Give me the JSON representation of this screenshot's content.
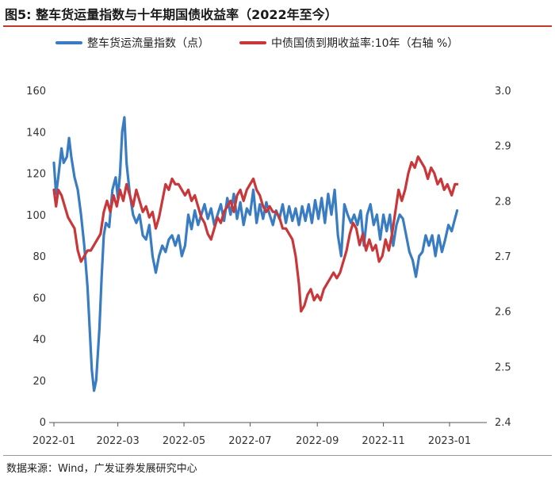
{
  "title": "图5:  整车货运量指数与十年期国债收益率（2022年至今）",
  "source": "数据来源：Wind，广发证券发展研究中心",
  "chart_data": {
    "type": "line",
    "title": "整车货运量指数与十年期国债收益率（2022年至今）",
    "x_tick_labels": [
      "2022-01",
      "2022-03",
      "2022-05",
      "2022-07",
      "2022-09",
      "2022-11",
      "2023-01"
    ],
    "x_tick_dates": [
      "2022-01-01",
      "2022-03-01",
      "2022-05-01",
      "2022-07-01",
      "2022-09-01",
      "2022-11-01",
      "2023-01-01"
    ],
    "ylim_left": [
      0,
      160
    ],
    "y_ticks_left": [
      0,
      20,
      40,
      60,
      80,
      100,
      120,
      140,
      160
    ],
    "ylim_right": [
      2.4,
      3.0
    ],
    "y_ticks_right": [
      "2.4",
      "2.5",
      "2.6",
      "2.7",
      "2.8",
      "2.9",
      "3.0"
    ],
    "xlim": [
      "2022-01-01",
      "2023-01-31"
    ],
    "series": [
      {
        "name": "整车货运流量指数（点）",
        "axis": "left",
        "color": "#3a7cc2",
        "points": [
          [
            "2022-01-01",
            125
          ],
          [
            "2022-01-03",
            110
          ],
          [
            "2022-01-05",
            118
          ],
          [
            "2022-01-08",
            132
          ],
          [
            "2022-01-10",
            125
          ],
          [
            "2022-01-13",
            128
          ],
          [
            "2022-01-15",
            137
          ],
          [
            "2022-01-17",
            128
          ],
          [
            "2022-01-20",
            118
          ],
          [
            "2022-01-23",
            112
          ],
          [
            "2022-01-26",
            100
          ],
          [
            "2022-01-29",
            85
          ],
          [
            "2022-02-01",
            65
          ],
          [
            "2022-02-03",
            45
          ],
          [
            "2022-02-05",
            25
          ],
          [
            "2022-02-07",
            15
          ],
          [
            "2022-02-09",
            20
          ],
          [
            "2022-02-12",
            45
          ],
          [
            "2022-02-14",
            70
          ],
          [
            "2022-02-16",
            90
          ],
          [
            "2022-02-18",
            96
          ],
          [
            "2022-02-21",
            94
          ],
          [
            "2022-02-24",
            112
          ],
          [
            "2022-02-27",
            118
          ],
          [
            "2022-03-01",
            108
          ],
          [
            "2022-03-03",
            120
          ],
          [
            "2022-03-05",
            140
          ],
          [
            "2022-03-07",
            147
          ],
          [
            "2022-03-09",
            125
          ],
          [
            "2022-03-12",
            110
          ],
          [
            "2022-03-15",
            100
          ],
          [
            "2022-03-18",
            96
          ],
          [
            "2022-03-21",
            100
          ],
          [
            "2022-03-24",
            90
          ],
          [
            "2022-03-27",
            88
          ],
          [
            "2022-03-30",
            95
          ],
          [
            "2022-04-02",
            80
          ],
          [
            "2022-04-05",
            72
          ],
          [
            "2022-04-08",
            80
          ],
          [
            "2022-04-11",
            85
          ],
          [
            "2022-04-14",
            82
          ],
          [
            "2022-04-17",
            88
          ],
          [
            "2022-04-20",
            90
          ],
          [
            "2022-04-23",
            85
          ],
          [
            "2022-04-26",
            90
          ],
          [
            "2022-04-29",
            80
          ],
          [
            "2022-05-02",
            85
          ],
          [
            "2022-05-05",
            100
          ],
          [
            "2022-05-08",
            93
          ],
          [
            "2022-05-11",
            102
          ],
          [
            "2022-05-14",
            95
          ],
          [
            "2022-05-17",
            100
          ],
          [
            "2022-05-20",
            105
          ],
          [
            "2022-05-23",
            98
          ],
          [
            "2022-05-26",
            103
          ],
          [
            "2022-05-29",
            95
          ],
          [
            "2022-06-01",
            100
          ],
          [
            "2022-06-04",
            105
          ],
          [
            "2022-06-07",
            97
          ],
          [
            "2022-06-10",
            108
          ],
          [
            "2022-06-13",
            100
          ],
          [
            "2022-06-16",
            110
          ],
          [
            "2022-06-19",
            98
          ],
          [
            "2022-06-22",
            106
          ],
          [
            "2022-06-25",
            95
          ],
          [
            "2022-06-28",
            103
          ],
          [
            "2022-07-01",
            100
          ],
          [
            "2022-07-04",
            112
          ],
          [
            "2022-07-07",
            96
          ],
          [
            "2022-07-10",
            105
          ],
          [
            "2022-07-13",
            98
          ],
          [
            "2022-07-16",
            106
          ],
          [
            "2022-07-19",
            100
          ],
          [
            "2022-07-22",
            95
          ],
          [
            "2022-07-25",
            102
          ],
          [
            "2022-07-28",
            98
          ],
          [
            "2022-07-31",
            105
          ],
          [
            "2022-08-03",
            96
          ],
          [
            "2022-08-06",
            104
          ],
          [
            "2022-08-09",
            97
          ],
          [
            "2022-08-12",
            103
          ],
          [
            "2022-08-15",
            95
          ],
          [
            "2022-08-18",
            104
          ],
          [
            "2022-08-21",
            97
          ],
          [
            "2022-08-24",
            105
          ],
          [
            "2022-08-27",
            96
          ],
          [
            "2022-08-30",
            107
          ],
          [
            "2022-09-02",
            98
          ],
          [
            "2022-09-05",
            108
          ],
          [
            "2022-09-08",
            96
          ],
          [
            "2022-09-11",
            110
          ],
          [
            "2022-09-14",
            100
          ],
          [
            "2022-09-17",
            112
          ],
          [
            "2022-09-20",
            90
          ],
          [
            "2022-09-23",
            80
          ],
          [
            "2022-09-26",
            105
          ],
          [
            "2022-09-29",
            100
          ],
          [
            "2022-10-02",
            96
          ],
          [
            "2022-10-05",
            100
          ],
          [
            "2022-10-08",
            95
          ],
          [
            "2022-10-11",
            102
          ],
          [
            "2022-10-14",
            85
          ],
          [
            "2022-10-17",
            100
          ],
          [
            "2022-10-20",
            105
          ],
          [
            "2022-10-23",
            95
          ],
          [
            "2022-10-26",
            100
          ],
          [
            "2022-10-29",
            88
          ],
          [
            "2022-11-01",
            100
          ],
          [
            "2022-11-04",
            92
          ],
          [
            "2022-11-07",
            100
          ],
          [
            "2022-11-10",
            85
          ],
          [
            "2022-11-13",
            95
          ],
          [
            "2022-11-16",
            100
          ],
          [
            "2022-11-19",
            98
          ],
          [
            "2022-11-22",
            90
          ],
          [
            "2022-11-25",
            82
          ],
          [
            "2022-11-28",
            78
          ],
          [
            "2022-12-01",
            70
          ],
          [
            "2022-12-04",
            80
          ],
          [
            "2022-12-07",
            82
          ],
          [
            "2022-12-10",
            90
          ],
          [
            "2022-12-13",
            85
          ],
          [
            "2022-12-16",
            90
          ],
          [
            "2022-12-19",
            80
          ],
          [
            "2022-12-22",
            90
          ],
          [
            "2022-12-25",
            82
          ],
          [
            "2022-12-28",
            88
          ],
          [
            "2022-12-31",
            95
          ],
          [
            "2023-01-03",
            92
          ],
          [
            "2023-01-06",
            98
          ],
          [
            "2023-01-08",
            102
          ]
        ]
      },
      {
        "name": "中债国债到期收益率:10年（右轴 %）",
        "axis": "right",
        "color": "#c8373a",
        "points": [
          [
            "2022-01-01",
            2.82
          ],
          [
            "2022-01-03",
            2.79
          ],
          [
            "2022-01-05",
            2.82
          ],
          [
            "2022-01-08",
            2.81
          ],
          [
            "2022-01-11",
            2.79
          ],
          [
            "2022-01-14",
            2.77
          ],
          [
            "2022-01-17",
            2.76
          ],
          [
            "2022-01-20",
            2.75
          ],
          [
            "2022-01-23",
            2.71
          ],
          [
            "2022-01-26",
            2.69
          ],
          [
            "2022-01-29",
            2.7
          ],
          [
            "2022-02-01",
            2.71
          ],
          [
            "2022-02-04",
            2.71
          ],
          [
            "2022-02-07",
            2.72
          ],
          [
            "2022-02-10",
            2.73
          ],
          [
            "2022-02-13",
            2.74
          ],
          [
            "2022-02-16",
            2.78
          ],
          [
            "2022-02-19",
            2.8
          ],
          [
            "2022-02-22",
            2.78
          ],
          [
            "2022-02-25",
            2.81
          ],
          [
            "2022-02-28",
            2.79
          ],
          [
            "2022-03-03",
            2.82
          ],
          [
            "2022-03-06",
            2.8
          ],
          [
            "2022-03-09",
            2.83
          ],
          [
            "2022-03-12",
            2.81
          ],
          [
            "2022-03-15",
            2.79
          ],
          [
            "2022-03-18",
            2.82
          ],
          [
            "2022-03-21",
            2.8
          ],
          [
            "2022-03-24",
            2.78
          ],
          [
            "2022-03-27",
            2.79
          ],
          [
            "2022-03-30",
            2.77
          ],
          [
            "2022-04-02",
            2.78
          ],
          [
            "2022-04-05",
            2.75
          ],
          [
            "2022-04-08",
            2.77
          ],
          [
            "2022-04-11",
            2.8
          ],
          [
            "2022-04-14",
            2.83
          ],
          [
            "2022-04-17",
            2.82
          ],
          [
            "2022-04-20",
            2.84
          ],
          [
            "2022-04-23",
            2.83
          ],
          [
            "2022-04-26",
            2.83
          ],
          [
            "2022-04-29",
            2.82
          ],
          [
            "2022-05-02",
            2.81
          ],
          [
            "2022-05-05",
            2.82
          ],
          [
            "2022-05-08",
            2.8
          ],
          [
            "2022-05-11",
            2.81
          ],
          [
            "2022-05-14",
            2.79
          ],
          [
            "2022-05-17",
            2.77
          ],
          [
            "2022-05-20",
            2.76
          ],
          [
            "2022-05-23",
            2.74
          ],
          [
            "2022-05-26",
            2.73
          ],
          [
            "2022-05-29",
            2.75
          ],
          [
            "2022-06-01",
            2.77
          ],
          [
            "2022-06-04",
            2.76
          ],
          [
            "2022-06-07",
            2.78
          ],
          [
            "2022-06-10",
            2.79
          ],
          [
            "2022-06-13",
            2.8
          ],
          [
            "2022-06-16",
            2.78
          ],
          [
            "2022-06-19",
            2.81
          ],
          [
            "2022-06-22",
            2.82
          ],
          [
            "2022-06-25",
            2.8
          ],
          [
            "2022-06-28",
            2.82
          ],
          [
            "2022-07-01",
            2.83
          ],
          [
            "2022-07-04",
            2.84
          ],
          [
            "2022-07-07",
            2.82
          ],
          [
            "2022-07-10",
            2.81
          ],
          [
            "2022-07-13",
            2.79
          ],
          [
            "2022-07-16",
            2.78
          ],
          [
            "2022-07-19",
            2.79
          ],
          [
            "2022-07-22",
            2.78
          ],
          [
            "2022-07-25",
            2.78
          ],
          [
            "2022-07-28",
            2.77
          ],
          [
            "2022-07-31",
            2.75
          ],
          [
            "2022-08-03",
            2.75
          ],
          [
            "2022-08-06",
            2.74
          ],
          [
            "2022-08-09",
            2.73
          ],
          [
            "2022-08-12",
            2.7
          ],
          [
            "2022-08-15",
            2.65
          ],
          [
            "2022-08-17",
            2.6
          ],
          [
            "2022-08-20",
            2.61
          ],
          [
            "2022-08-23",
            2.63
          ],
          [
            "2022-08-26",
            2.64
          ],
          [
            "2022-08-29",
            2.62
          ],
          [
            "2022-09-01",
            2.63
          ],
          [
            "2022-09-04",
            2.62
          ],
          [
            "2022-09-07",
            2.64
          ],
          [
            "2022-09-10",
            2.65
          ],
          [
            "2022-09-13",
            2.66
          ],
          [
            "2022-09-16",
            2.67
          ],
          [
            "2022-09-19",
            2.66
          ],
          [
            "2022-09-22",
            2.67
          ],
          [
            "2022-09-25",
            2.69
          ],
          [
            "2022-09-28",
            2.71
          ],
          [
            "2022-10-01",
            2.74
          ],
          [
            "2022-10-04",
            2.76
          ],
          [
            "2022-10-07",
            2.75
          ],
          [
            "2022-10-10",
            2.72
          ],
          [
            "2022-10-13",
            2.74
          ],
          [
            "2022-10-16",
            2.71
          ],
          [
            "2022-10-19",
            2.73
          ],
          [
            "2022-10-22",
            2.71
          ],
          [
            "2022-10-25",
            2.72
          ],
          [
            "2022-10-28",
            2.69
          ],
          [
            "2022-10-31",
            2.7
          ],
          [
            "2022-11-03",
            2.73
          ],
          [
            "2022-11-06",
            2.71
          ],
          [
            "2022-11-09",
            2.74
          ],
          [
            "2022-11-12",
            2.78
          ],
          [
            "2022-11-15",
            2.82
          ],
          [
            "2022-11-18",
            2.8
          ],
          [
            "2022-11-21",
            2.82
          ],
          [
            "2022-11-24",
            2.85
          ],
          [
            "2022-11-27",
            2.87
          ],
          [
            "2022-11-30",
            2.86
          ],
          [
            "2022-12-03",
            2.88
          ],
          [
            "2022-12-06",
            2.87
          ],
          [
            "2022-12-09",
            2.86
          ],
          [
            "2022-12-12",
            2.84
          ],
          [
            "2022-12-15",
            2.86
          ],
          [
            "2022-12-18",
            2.85
          ],
          [
            "2022-12-21",
            2.83
          ],
          [
            "2022-12-24",
            2.84
          ],
          [
            "2022-12-27",
            2.82
          ],
          [
            "2022-12-30",
            2.83
          ],
          [
            "2023-01-03",
            2.81
          ],
          [
            "2023-01-06",
            2.83
          ],
          [
            "2023-01-08",
            2.83
          ]
        ]
      }
    ]
  }
}
